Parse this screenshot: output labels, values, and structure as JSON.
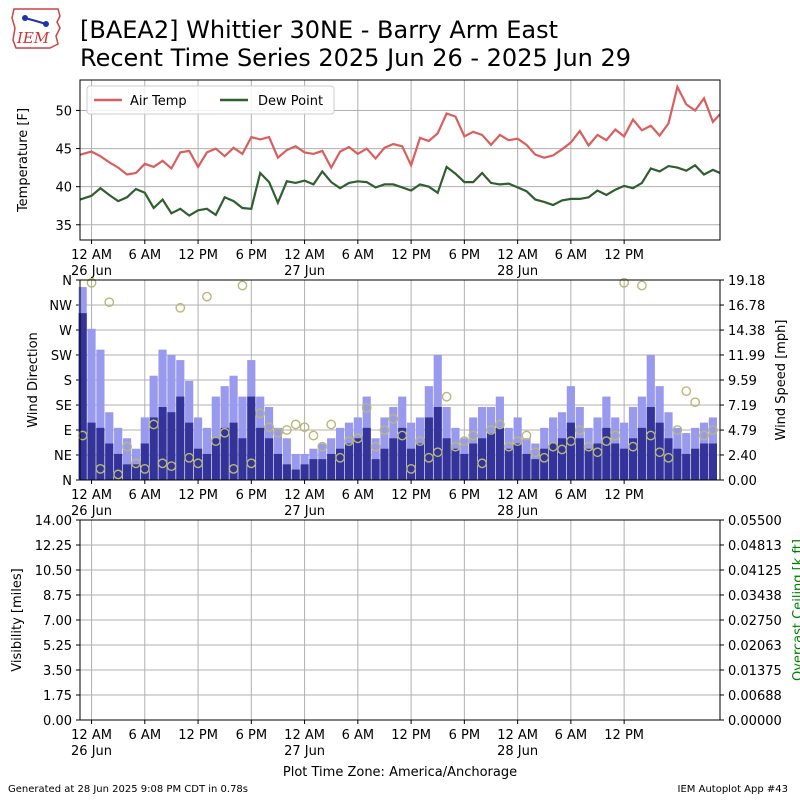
{
  "title": "[BAEA2] Whittier 30NE - Barry Arm East",
  "subtitle": "Recent Time Series 2025 Jun 26 - 2025 Jun 29",
  "logo_text": "IEM",
  "footer_left": "Generated at 28 Jun 2025 9:08 PM CDT in 0.78s",
  "footer_right": "IEM Autoplot App #43",
  "colors": {
    "air_temp": "#d95f5f",
    "dew_point": "#2f5f2f",
    "wind_gust": "#9999ee",
    "wind_speed": "#333399",
    "wind_dir": "#b8b878",
    "grid": "#b0b0b0"
  },
  "chart_data": [
    {
      "id": "temperature",
      "type": "line",
      "ylabel": "Temperature [F]",
      "ylim": [
        33,
        54
      ],
      "yticks": [
        35,
        40,
        45,
        50
      ],
      "xlim": [
        -1.3,
        70.8
      ],
      "x_tick_hours": [
        0,
        6,
        12,
        18,
        24,
        30,
        36,
        42,
        48,
        54,
        60
      ],
      "x_tick_labels": [
        "12 AM",
        "6 AM",
        "12 PM",
        "6 PM",
        "12 AM",
        "6 AM",
        "12 PM",
        "6 PM",
        "12 AM",
        "6 AM",
        "12 PM"
      ],
      "x_date_labels": [
        "26 Jun",
        "",
        "",
        "",
        "27 Jun",
        "",
        "",
        "",
        "28 Jun",
        "",
        ""
      ],
      "grid": true,
      "legend": "top-left",
      "series": [
        {
          "name": "Air Temp",
          "points": [
            [
              -1.3,
              44.2
            ],
            [
              0,
              44.6
            ],
            [
              1,
              44
            ],
            [
              2,
              43.2
            ],
            [
              3,
              42.5
            ],
            [
              4,
              41.6
            ],
            [
              5,
              41.8
            ],
            [
              6,
              43
            ],
            [
              7,
              42.6
            ],
            [
              8,
              43.4
            ],
            [
              9,
              42.4
            ],
            [
              10,
              44.5
            ],
            [
              11,
              44.7
            ],
            [
              12,
              42.6
            ],
            [
              13,
              44.5
            ],
            [
              14,
              45
            ],
            [
              15,
              44
            ],
            [
              16,
              45.1
            ],
            [
              17,
              44.3
            ],
            [
              18,
              46.5
            ],
            [
              19,
              46.2
            ],
            [
              20,
              46.5
            ],
            [
              21,
              43.8
            ],
            [
              22,
              44.8
            ],
            [
              23,
              45.3
            ],
            [
              24,
              44.5
            ],
            [
              25,
              44.3
            ],
            [
              26,
              44.7
            ],
            [
              27,
              42.5
            ],
            [
              28,
              44.6
            ],
            [
              29,
              45.2
            ],
            [
              30,
              44.3
            ],
            [
              31,
              45
            ],
            [
              32,
              43.7
            ],
            [
              33,
              45.1
            ],
            [
              34,
              45.6
            ],
            [
              35,
              45.3
            ],
            [
              36,
              42.8
            ],
            [
              37,
              46.4
            ],
            [
              38,
              46
            ],
            [
              39,
              47
            ],
            [
              40,
              49.6
            ],
            [
              41,
              49.2
            ],
            [
              42,
              46.6
            ],
            [
              43,
              47.2
            ],
            [
              44,
              46.8
            ],
            [
              45,
              45.5
            ],
            [
              46,
              46.8
            ],
            [
              47,
              46.1
            ],
            [
              48,
              46.3
            ],
            [
              49,
              45.5
            ],
            [
              50,
              44.2
            ],
            [
              51,
              43.8
            ],
            [
              52,
              44.1
            ],
            [
              53,
              44.9
            ],
            [
              54,
              45.8
            ],
            [
              55,
              47.3
            ],
            [
              56,
              45.4
            ],
            [
              57,
              46.8
            ],
            [
              58,
              46.1
            ],
            [
              59,
              47.5
            ],
            [
              60,
              46.6
            ],
            [
              61,
              48.8
            ],
            [
              62,
              47.4
            ],
            [
              63,
              48
            ],
            [
              64,
              46.7
            ],
            [
              65,
              48.3
            ],
            [
              66,
              53.1
            ],
            [
              67,
              50.8
            ],
            [
              68,
              50
            ],
            [
              69,
              51.6
            ],
            [
              70,
              48.5
            ],
            [
              70.8,
              49.5
            ]
          ]
        },
        {
          "name": "Dew Point",
          "points": [
            [
              -1.3,
              38.3
            ],
            [
              0,
              38.8
            ],
            [
              1,
              39.8
            ],
            [
              2,
              38.9
            ],
            [
              3,
              38.1
            ],
            [
              4,
              38.6
            ],
            [
              5,
              39.7
            ],
            [
              6,
              39.2
            ],
            [
              7,
              37.2
            ],
            [
              8,
              38.3
            ],
            [
              9,
              36.5
            ],
            [
              10,
              37.1
            ],
            [
              11,
              36.2
            ],
            [
              12,
              36.9
            ],
            [
              13,
              37.1
            ],
            [
              14,
              36.3
            ],
            [
              15,
              38.6
            ],
            [
              16,
              38.1
            ],
            [
              17,
              37.2
            ],
            [
              18,
              37.1
            ],
            [
              19,
              41.8
            ],
            [
              20,
              40.6
            ],
            [
              21,
              37.9
            ],
            [
              22,
              40.7
            ],
            [
              23,
              40.5
            ],
            [
              24,
              40.8
            ],
            [
              25,
              40.3
            ],
            [
              26,
              42
            ],
            [
              27,
              40.6
            ],
            [
              28,
              39.8
            ],
            [
              29,
              40.5
            ],
            [
              30,
              40.7
            ],
            [
              31,
              40.6
            ],
            [
              32,
              39.9
            ],
            [
              33,
              40.3
            ],
            [
              34,
              40.3
            ],
            [
              35,
              39.9
            ],
            [
              36,
              39.5
            ],
            [
              37,
              40.3
            ],
            [
              38,
              40
            ],
            [
              39,
              39.2
            ],
            [
              40,
              42.6
            ],
            [
              41,
              41.7
            ],
            [
              42,
              40.6
            ],
            [
              43,
              40.6
            ],
            [
              44,
              41.8
            ],
            [
              45,
              40.5
            ],
            [
              46,
              40.3
            ],
            [
              47,
              40.4
            ],
            [
              48,
              39.9
            ],
            [
              49,
              39.4
            ],
            [
              50,
              38.3
            ],
            [
              51,
              38
            ],
            [
              52,
              37.6
            ],
            [
              53,
              38.2
            ],
            [
              54,
              38.4
            ],
            [
              55,
              38.4
            ],
            [
              56,
              38.6
            ],
            [
              57,
              39.5
            ],
            [
              58,
              38.9
            ],
            [
              59,
              39.6
            ],
            [
              60,
              40.1
            ],
            [
              61,
              39.8
            ],
            [
              62,
              40.5
            ],
            [
              63,
              42.4
            ],
            [
              64,
              42
            ],
            [
              65,
              42.7
            ],
            [
              66,
              42.5
            ],
            [
              67,
              42.1
            ],
            [
              68,
              42.8
            ],
            [
              69,
              41.6
            ],
            [
              70,
              42.2
            ],
            [
              70.8,
              41.8
            ]
          ]
        }
      ]
    },
    {
      "id": "wind",
      "type": "bar",
      "ylabel": "Wind Direction",
      "y2label": "Wind Speed [mph]",
      "direction_ticks": [
        "N",
        "NE",
        "E",
        "SE",
        "S",
        "SW",
        "W",
        "NW",
        "N"
      ],
      "direction_values": [
        0,
        45,
        90,
        135,
        180,
        225,
        270,
        315,
        360
      ],
      "speed_ticks": [
        "0.00",
        "2.40",
        "4.79",
        "7.19",
        "9.59",
        "11.99",
        "14.38",
        "16.78",
        "19.18"
      ],
      "speed_ylim": [
        0,
        19.18
      ],
      "xlim": [
        -1.3,
        70.8
      ],
      "grid": true,
      "series": [
        {
          "name": "Wind Gust",
          "hours": [
            -1,
            0,
            1,
            2,
            3,
            4,
            5,
            6,
            7,
            8,
            9,
            10,
            11,
            12,
            13,
            14,
            15,
            16,
            17,
            18,
            19,
            20,
            21,
            22,
            23,
            24,
            25,
            26,
            27,
            28,
            29,
            30,
            31,
            32,
            33,
            34,
            35,
            36,
            37,
            38,
            39,
            40,
            41,
            42,
            43,
            44,
            45,
            46,
            47,
            48,
            49,
            50,
            51,
            52,
            53,
            54,
            55,
            56,
            57,
            58,
            59,
            60,
            61,
            62,
            63,
            64,
            65,
            66,
            67,
            68,
            69,
            70
          ],
          "values": [
            18.5,
            14.5,
            12.5,
            6.5,
            5,
            4,
            3,
            6,
            10,
            12.5,
            12,
            11.5,
            9.5,
            6,
            5,
            8,
            9,
            10,
            8,
            11.5,
            8,
            7,
            5,
            4,
            2.5,
            2.5,
            3,
            3.5,
            4,
            5,
            5.5,
            6,
            8,
            4,
            6,
            7,
            8,
            5.5,
            6,
            9,
            12,
            7,
            5,
            4,
            6,
            7,
            7,
            8,
            5,
            6,
            4,
            3.5,
            5,
            6,
            6.5,
            9,
            7,
            5,
            6,
            8,
            6,
            5.5,
            7,
            8,
            12,
            9,
            6.5,
            5,
            4.5,
            5,
            5.5,
            6
          ]
        },
        {
          "name": "Wind Speed",
          "hours": [
            -1,
            0,
            1,
            2,
            3,
            4,
            5,
            6,
            7,
            8,
            9,
            10,
            11,
            12,
            13,
            14,
            15,
            16,
            17,
            18,
            19,
            20,
            21,
            22,
            23,
            24,
            25,
            26,
            27,
            28,
            29,
            30,
            31,
            32,
            33,
            34,
            35,
            36,
            37,
            38,
            39,
            40,
            41,
            42,
            43,
            44,
            45,
            46,
            47,
            48,
            49,
            50,
            51,
            52,
            53,
            54,
            55,
            56,
            57,
            58,
            59,
            60,
            61,
            62,
            63,
            64,
            65,
            66,
            67,
            68,
            69,
            70
          ],
          "values": [
            16,
            5.5,
            5,
            3.5,
            2.5,
            1.5,
            1.5,
            3.5,
            6,
            7,
            6.5,
            8,
            5.5,
            3,
            2.5,
            4,
            5,
            5.5,
            4,
            8,
            5,
            4,
            2.5,
            1.5,
            1,
            1.5,
            2,
            2,
            2.5,
            3,
            3.5,
            4,
            5,
            2,
            3,
            4,
            5,
            3,
            3.5,
            6,
            7,
            4,
            3,
            2.5,
            3.5,
            4,
            4.5,
            5,
            3,
            3.5,
            2.5,
            2,
            3,
            3.5,
            4,
            5.5,
            4,
            3,
            3.5,
            5,
            3.5,
            3,
            4,
            5,
            7,
            5.5,
            4,
            3,
            2.5,
            3,
            3.5,
            3.5
          ]
        },
        {
          "name": "Wind Direction",
          "type": "scatter",
          "hours": [
            -1,
            0,
            1,
            2,
            3,
            4,
            5,
            6,
            7,
            8,
            9,
            10,
            11,
            12,
            13,
            14,
            15,
            16,
            17,
            18,
            19,
            20,
            21,
            22,
            23,
            24,
            25,
            26,
            27,
            28,
            29,
            30,
            31,
            32,
            33,
            34,
            35,
            36,
            37,
            38,
            39,
            40,
            41,
            42,
            43,
            44,
            45,
            46,
            47,
            48,
            49,
            50,
            51,
            52,
            53,
            54,
            55,
            56,
            57,
            58,
            59,
            60,
            61,
            62,
            63,
            64,
            65,
            66,
            67,
            68,
            69,
            70
          ],
          "degrees": [
            80,
            355,
            20,
            320,
            10,
            60,
            30,
            20,
            100,
            30,
            25,
            310,
            40,
            30,
            330,
            70,
            85,
            20,
            350,
            30,
            120,
            95,
            85,
            90,
            100,
            95,
            80,
            60,
            100,
            40,
            70,
            75,
            130,
            60,
            90,
            110,
            80,
            20,
            70,
            40,
            50,
            150,
            60,
            70,
            80,
            30,
            90,
            100,
            60,
            70,
            80,
            50,
            40,
            60,
            55,
            70,
            90,
            60,
            50,
            70,
            80,
            355,
            60,
            350,
            80,
            50,
            40,
            90,
            160,
            140,
            80,
            90
          ]
        }
      ]
    },
    {
      "id": "visibility",
      "type": "line",
      "ylabel": "Visibility [miles]",
      "y2label": "Overcast Ceiling [k ft]",
      "ylim": [
        0,
        14
      ],
      "yticks": [
        "0.00",
        "1.75",
        "3.50",
        "5.25",
        "7.00",
        "8.75",
        "10.50",
        "12.25",
        "14.00"
      ],
      "y2lim": [
        0,
        0.055
      ],
      "y2ticks": [
        "0.00000",
        "0.00688",
        "0.01375",
        "0.02063",
        "0.02750",
        "0.03438",
        "0.04125",
        "0.04813",
        "0.05500"
      ],
      "xlim": [
        -1.3,
        70.8
      ],
      "xlabel": "Plot Time Zone: America/Anchorage",
      "grid": true,
      "series": []
    }
  ]
}
